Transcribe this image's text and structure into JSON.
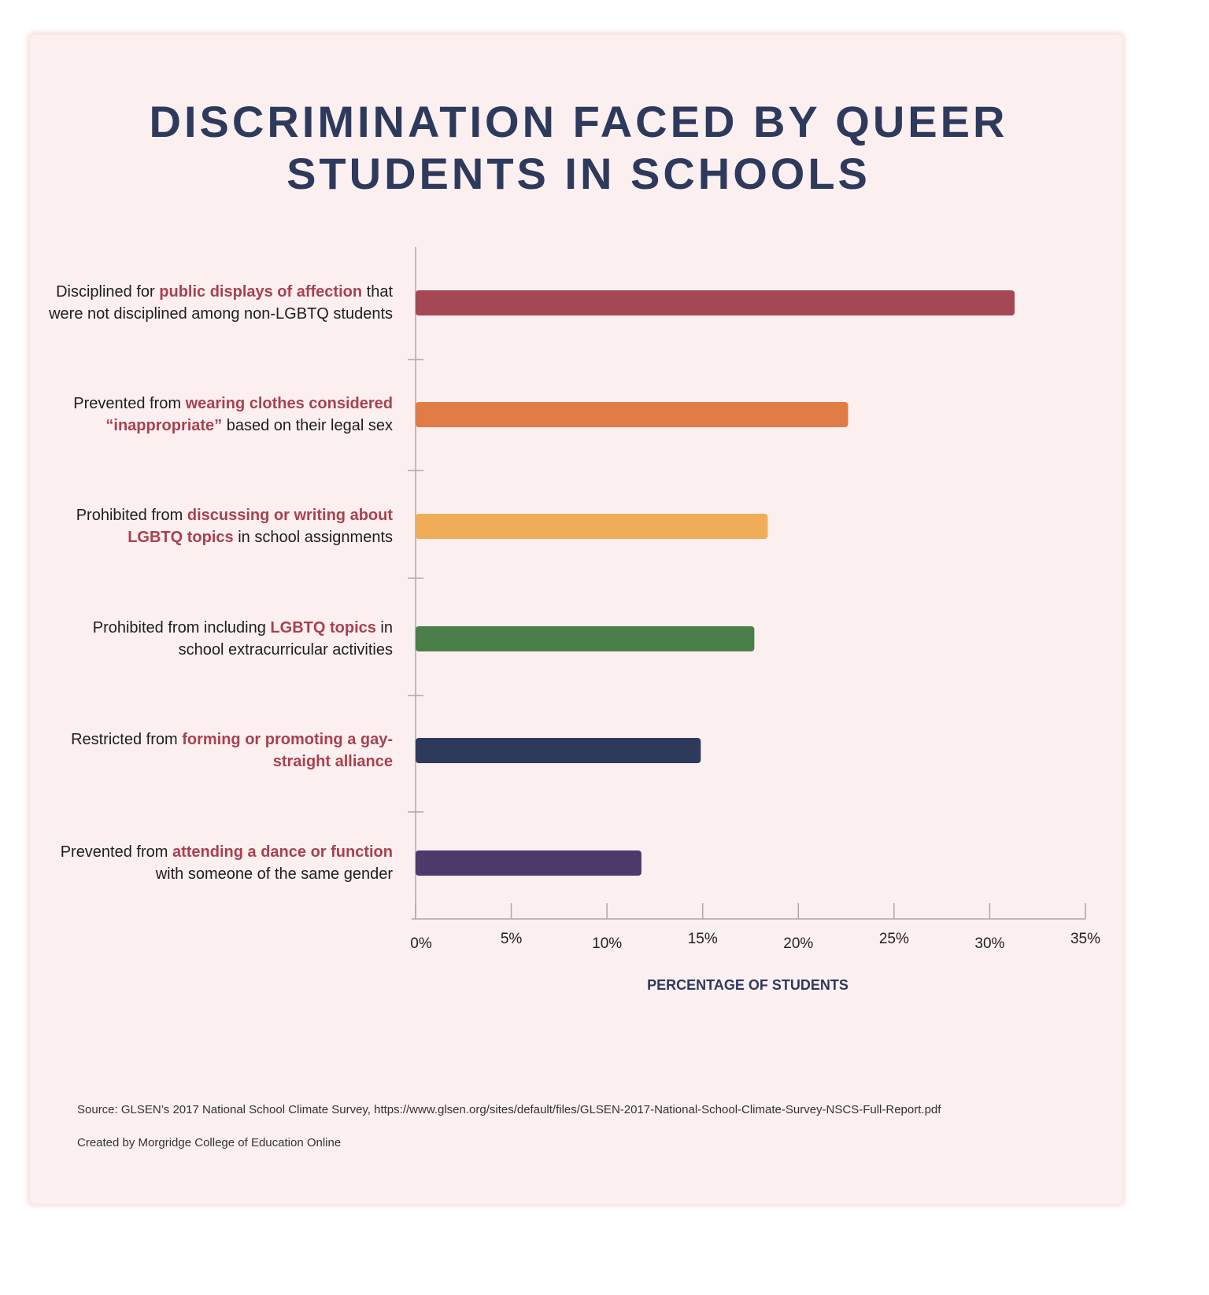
{
  "title_lines": [
    "DISCRIMINATION FACED BY QUEER",
    "STUDENTS IN SCHOOLS"
  ],
  "chart_data": {
    "type": "bar",
    "orientation": "horizontal",
    "title": "DISCRIMINATION FACED BY QUEER STUDENTS IN SCHOOLS",
    "xlabel": "PERCENTAGE OF STUDENTS",
    "xlim": [
      0,
      35
    ],
    "xticks": [
      "0%",
      "5%",
      "10%",
      "15%",
      "20%",
      "25%",
      "30%",
      "35%"
    ],
    "grid": false,
    "categories": [
      [
        {
          "t": "Disciplined for "
        },
        {
          "t": "public displays of affection",
          "h": true
        },
        {
          "t": " that were not disciplined among non-LGBTQ students"
        }
      ],
      [
        {
          "t": "Prevented from "
        },
        {
          "t": "wearing clothes considered “inappropriate”",
          "h": true
        },
        {
          "t": " based on their legal sex"
        }
      ],
      [
        {
          "t": "Prohibited from "
        },
        {
          "t": "discussing or writing about LGBTQ topics",
          "h": true
        },
        {
          "t": " in school assignments"
        }
      ],
      [
        {
          "t": "Prohibited from including "
        },
        {
          "t": "LGBTQ topics",
          "h": true
        },
        {
          "t": " in school extracurricular activities"
        }
      ],
      [
        {
          "t": "Restricted from "
        },
        {
          "t": "forming or promoting a gay-straight alliance",
          "h": true
        }
      ],
      [
        {
          "t": "Prevented from "
        },
        {
          "t": "attending a dance or function",
          "h": true
        },
        {
          "t": " with someone of the same gender"
        }
      ]
    ],
    "values": [
      31.3,
      22.6,
      18.4,
      17.7,
      14.9,
      11.8
    ],
    "colors": [
      "#a64756",
      "#e07c45",
      "#f0ad57",
      "#4a7f49",
      "#2d3a5c",
      "#4c3a6b"
    ]
  },
  "footer": {
    "source": "Source: GLSEN’s 2017 National School Climate Survey, https://www.glsen.org/sites/default/files/GLSEN-2017-National-School-Climate-Survey-NSCS-Full-Report.pdf",
    "credit": "Created by Morgridge College of Education Online"
  }
}
